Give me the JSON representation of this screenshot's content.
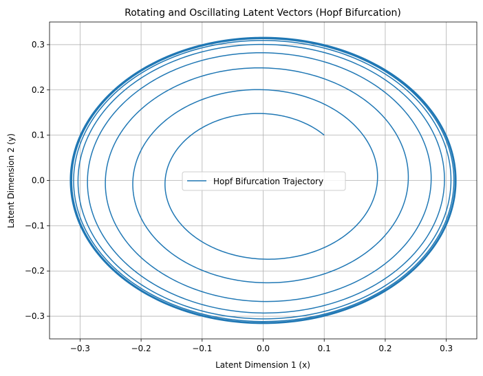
{
  "chart_data": {
    "type": "line",
    "title": "Rotating and Oscillating Latent Vectors (Hopf Bifurcation)",
    "xlabel": "Latent Dimension 1 (x)",
    "ylabel": "Latent Dimension 2 (y)",
    "xlim": [
      -0.35,
      0.35
    ],
    "ylim": [
      -0.35,
      0.35
    ],
    "xticks": [
      -0.3,
      -0.2,
      -0.1,
      0.0,
      0.1,
      0.2,
      0.3
    ],
    "yticks": [
      -0.3,
      -0.2,
      -0.1,
      0.0,
      0.1,
      0.2,
      0.3
    ],
    "xtick_labels": [
      "−0.3",
      "−0.2",
      "−0.1",
      "0.0",
      "0.1",
      "0.2",
      "0.3"
    ],
    "ytick_labels": [
      "−0.3",
      "−0.2",
      "−0.1",
      "0.0",
      "0.1",
      "0.2",
      "0.3"
    ],
    "grid": true,
    "legend_position": "center",
    "series": [
      {
        "name": "Hopf Bifurcation Trajectory",
        "color": "#1f77b4",
        "start_point": [
          0.1,
          0.1
        ],
        "limit_cycle_radius": 0.316,
        "rotation": "counterclockwise",
        "turns": 22
      }
    ]
  }
}
